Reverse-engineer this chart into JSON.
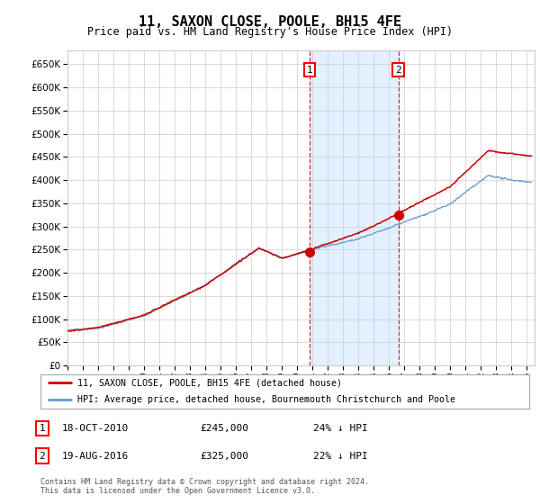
{
  "title": "11, SAXON CLOSE, POOLE, BH15 4FE",
  "subtitle": "Price paid vs. HM Land Registry's House Price Index (HPI)",
  "ylim": [
    0,
    680000
  ],
  "yticks": [
    0,
    50000,
    100000,
    150000,
    200000,
    250000,
    300000,
    350000,
    400000,
    450000,
    500000,
    550000,
    600000,
    650000
  ],
  "xlim_start": 1995.0,
  "xlim_end": 2025.5,
  "transaction1": {
    "date": 2010.8,
    "price": 245000,
    "label": "1",
    "text": "18-OCT-2010",
    "amount": "£245,000",
    "pct": "24% ↓ HPI"
  },
  "transaction2": {
    "date": 2016.6,
    "price": 325000,
    "label": "2",
    "text": "19-AUG-2016",
    "amount": "£325,000",
    "pct": "22% ↓ HPI"
  },
  "legend_entry1": "11, SAXON CLOSE, POOLE, BH15 4FE (detached house)",
  "legend_entry2": "HPI: Average price, detached house, Bournemouth Christchurch and Poole",
  "footer": "Contains HM Land Registry data © Crown copyright and database right 2024.\nThis data is licensed under the Open Government Licence v3.0.",
  "line_color_red": "#cc0000",
  "line_color_blue": "#6699cc",
  "background_color": "#ffffff",
  "grid_color": "#cccccc",
  "shaded_region_color": "#ddeeff"
}
